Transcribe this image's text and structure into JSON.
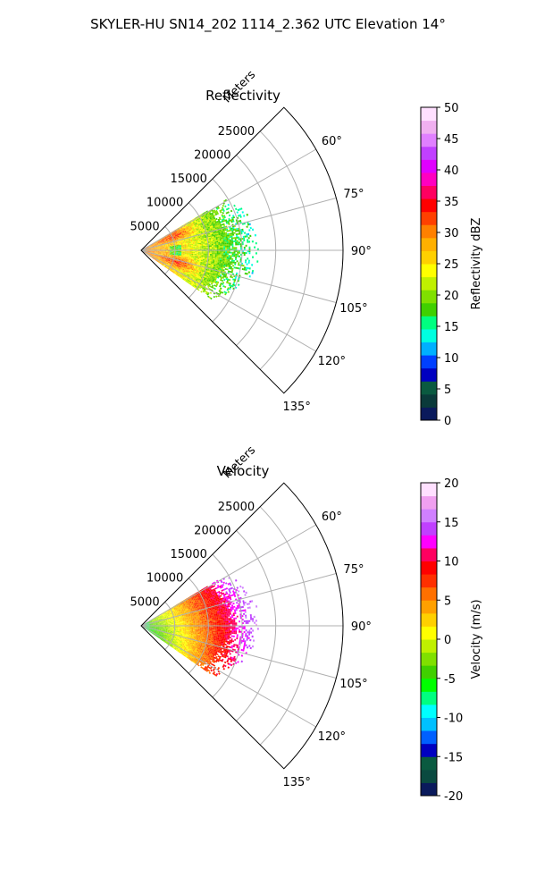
{
  "suptitle": "SKYLER-HU  SN14_202  1114_2.362 UTC Elevation 14°",
  "chart_data": [
    {
      "type": "polar-sector",
      "title": "Reflectivity",
      "range_label": "Meters",
      "azimuth_range_deg": [
        45,
        135
      ],
      "range_max_m": 30000,
      "range_ticks": [
        "5000",
        "10000",
        "15000",
        "20000",
        "25000"
      ],
      "angle_ticks": [
        "60°",
        "75°",
        "90°",
        "105°",
        "120°",
        "135°"
      ],
      "colorbar": {
        "label": "Reflectivity dBZ",
        "min": 0,
        "max": 50,
        "ticks": [
          "0",
          "5",
          "10",
          "15",
          "20",
          "25",
          "30",
          "35",
          "40",
          "45",
          "50"
        ]
      },
      "data_extent": {
        "azimuth_deg": [
          59,
          125
        ],
        "range_m": [
          0,
          17500
        ]
      }
    },
    {
      "type": "polar-sector",
      "title": "Velocity",
      "range_label": "Meters",
      "azimuth_range_deg": [
        45,
        135
      ],
      "range_max_m": 30000,
      "range_ticks": [
        "5000",
        "10000",
        "15000",
        "20000",
        "25000"
      ],
      "angle_ticks": [
        "60°",
        "75°",
        "90°",
        "105°",
        "120°",
        "135°"
      ],
      "colorbar": {
        "label": "Velocity (m/s)",
        "min": -20,
        "max": 20,
        "ticks": [
          "-20",
          "-15",
          "-10",
          "-5",
          "0",
          "5",
          "10",
          "15",
          "20"
        ]
      },
      "data_extent": {
        "azimuth_deg": [
          59,
          125
        ],
        "range_m": [
          0,
          17500
        ]
      }
    }
  ],
  "colors": {
    "refl_stops": [
      "#0a1a5c",
      "#0a3a3a",
      "#0a5a40",
      "#0000c0",
      "#0040ff",
      "#00b0ff",
      "#00ffe0",
      "#00ff80",
      "#40d000",
      "#80e000",
      "#c0f000",
      "#ffff00",
      "#ffd000",
      "#ffb000",
      "#ff8000",
      "#ff4000",
      "#ff0000",
      "#ff0060",
      "#ff00c0",
      "#e000ff",
      "#c040ff",
      "#e080ff",
      "#f0b0f0",
      "#ffe0ff"
    ],
    "vel_stops": [
      "#0a1a5c",
      "#0a4a40",
      "#0a5a40",
      "#0000c0",
      "#0060ff",
      "#00c0ff",
      "#00ffff",
      "#00ff80",
      "#00ff00",
      "#40d000",
      "#80e000",
      "#c0f000",
      "#ffff00",
      "#ffd000",
      "#ffa000",
      "#ff7000",
      "#ff3000",
      "#ff0000",
      "#ff0060",
      "#ff00ff",
      "#c040ff",
      "#d080ff",
      "#f0a0f0",
      "#ffe0ff"
    ]
  }
}
